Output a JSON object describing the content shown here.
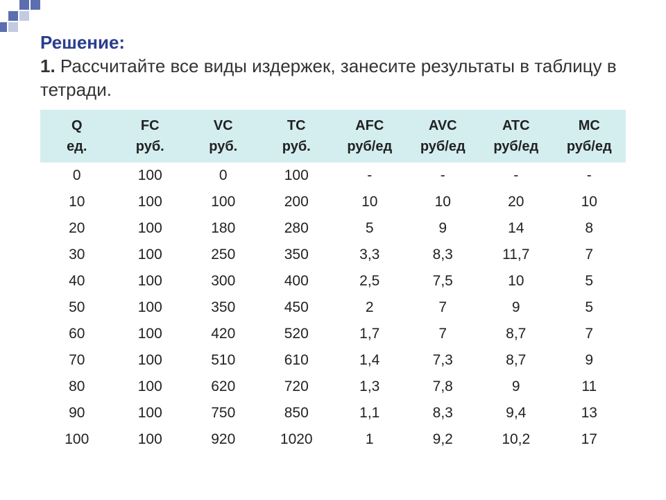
{
  "title": {
    "label": "Решение:",
    "num": "1.",
    "text": " Рассчитайте все виды издержек, занесите результаты в таблицу в тетради."
  },
  "table": {
    "type": "table",
    "header_bg": "#d4eef0",
    "text_color": "#222222",
    "columns": [
      {
        "name": "Q",
        "unit": "ед."
      },
      {
        "name": "FC",
        "unit": "руб."
      },
      {
        "name": "VC",
        "unit": "руб."
      },
      {
        "name": "TC",
        "unit": "руб."
      },
      {
        "name": "AFC",
        "unit": "руб/ед"
      },
      {
        "name": "AVC",
        "unit": "руб/ед"
      },
      {
        "name": "ATC",
        "unit": "руб/ед"
      },
      {
        "name": "MC",
        "unit": "руб/ед"
      }
    ],
    "rows": [
      [
        "0",
        "100",
        "0",
        "100",
        "-",
        "-",
        "-",
        "-"
      ],
      [
        "10",
        "100",
        "100",
        "200",
        "10",
        "10",
        "20",
        "10"
      ],
      [
        "20",
        "100",
        "180",
        "280",
        "5",
        "9",
        "14",
        "8"
      ],
      [
        "30",
        "100",
        "250",
        "350",
        "3,3",
        "8,3",
        "11,7",
        "7"
      ],
      [
        "40",
        "100",
        "300",
        "400",
        "2,5",
        "7,5",
        "10",
        "5"
      ],
      [
        "50",
        "100",
        "350",
        "450",
        "2",
        "7",
        "9",
        "5"
      ],
      [
        "60",
        "100",
        "420",
        "520",
        "1,7",
        "7",
        "8,7",
        "7"
      ],
      [
        "70",
        "100",
        "510",
        "610",
        "1,4",
        "7,3",
        "8,7",
        "9"
      ],
      [
        "80",
        "100",
        "620",
        "720",
        "1,3",
        "7,8",
        "9",
        "11"
      ],
      [
        "90",
        "100",
        "750",
        "850",
        "1,1",
        "8,3",
        "9,4",
        "13"
      ],
      [
        "100",
        "100",
        "920",
        "1020",
        "1",
        "9,2",
        "10,2",
        "17"
      ]
    ]
  },
  "decor_colors": {
    "dark": "#5b6fb0",
    "light": "#c3cbe0"
  }
}
